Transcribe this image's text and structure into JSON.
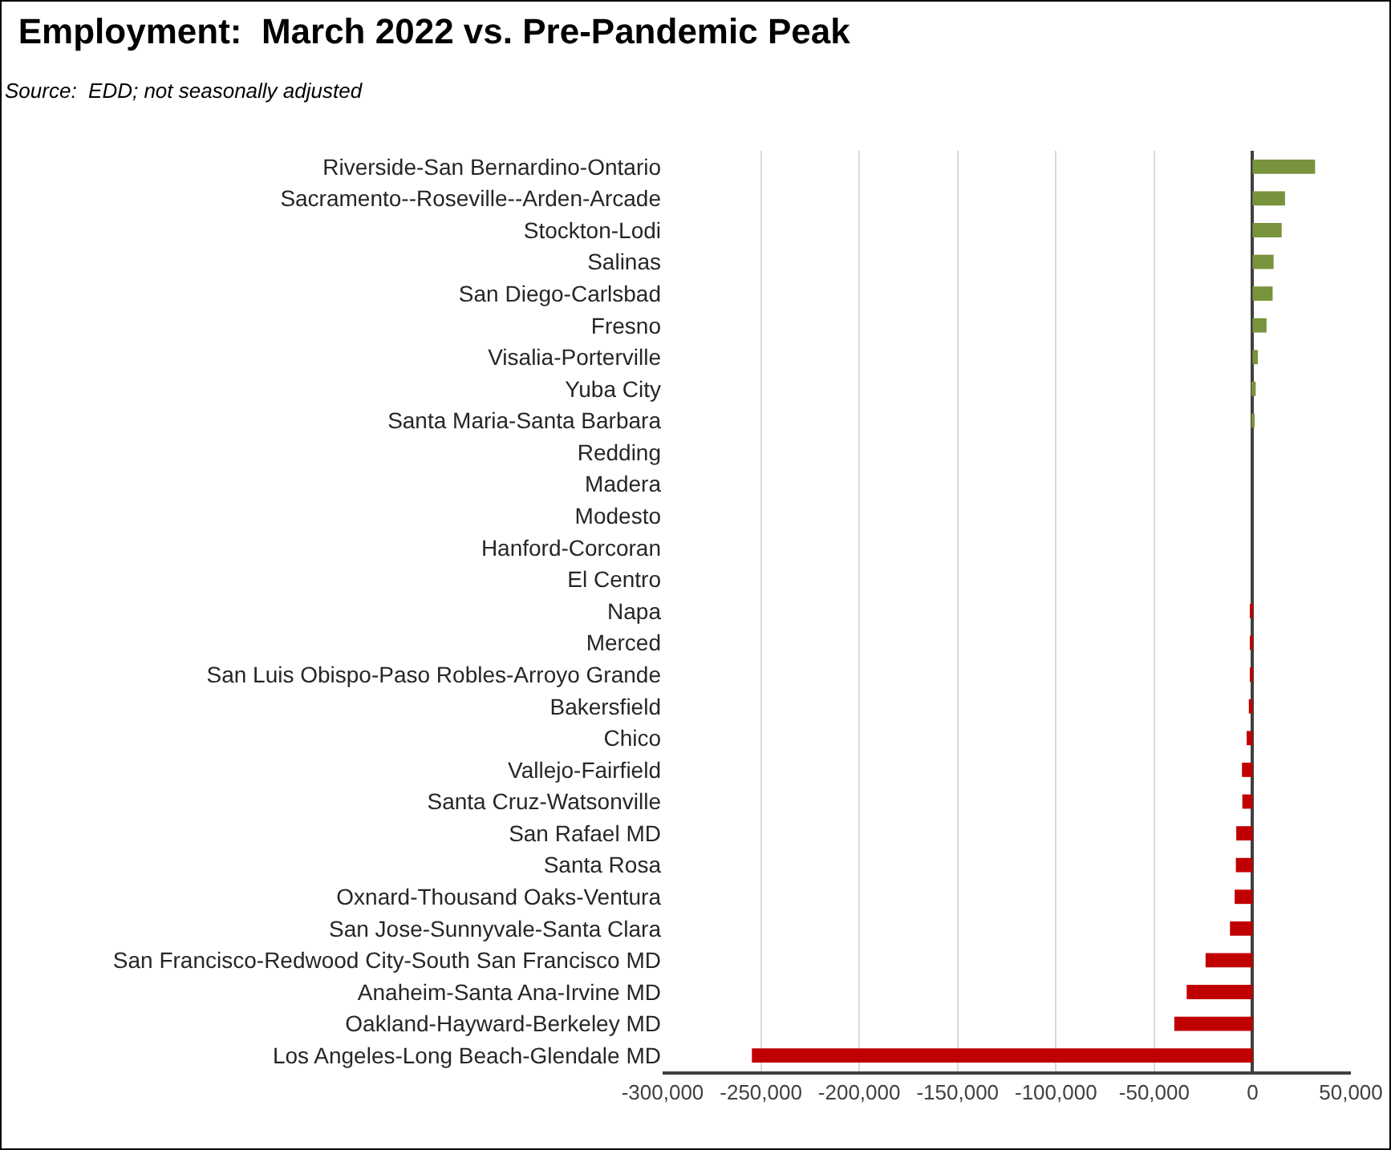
{
  "chart_data": {
    "type": "bar",
    "orientation": "horizontal",
    "title": "Employment:  March 2022 vs. Pre-Pandemic Peak",
    "subtitle": "Source:  EDD; not seasonally adjusted",
    "categories": [
      "Riverside-San Bernardino-Ontario",
      "Sacramento--Roseville--Arden-Arcade",
      "Stockton-Lodi",
      "Salinas",
      "San Diego-Carlsbad",
      "Fresno",
      "Visalia-Porterville",
      "Yuba City",
      "Santa Maria-Santa Barbara",
      "Redding",
      "Madera",
      "Modesto",
      "Hanford-Corcoran",
      "El Centro",
      "Napa",
      "Merced",
      "San Luis Obispo-Paso Robles-Arroyo Grande",
      "Bakersfield",
      "Chico",
      "Vallejo-Fairfield",
      "Santa Cruz-Watsonville",
      "San Rafael MD",
      "Santa Rosa",
      "Oxnard-Thousand Oaks-Ventura",
      "San Jose-Sunnyvale-Santa Clara",
      "San Francisco-Redwood City-South San Francisco MD",
      "Anaheim-Santa Ana-Irvine MD",
      "Oakland-Hayward-Berkeley MD",
      "Los Angeles-Long Beach-Glendale MD"
    ],
    "values": [
      31800,
      16500,
      14800,
      10700,
      10200,
      7100,
      2700,
      1600,
      1000,
      0,
      0,
      0,
      0,
      0,
      -800,
      -1000,
      -1400,
      -1900,
      -3000,
      -5400,
      -5200,
      -8300,
      -8500,
      -9100,
      -11500,
      -23900,
      -33500,
      -39800,
      -254600
    ],
    "colors": [
      "#77933c",
      "#77933c",
      "#77933c",
      "#77933c",
      "#77933c",
      "#77933c",
      "#77933c",
      "#77933c",
      "#77933c",
      "#77933c",
      "#77933c",
      "#77933c",
      "#77933c",
      "#77933c",
      "#c00000",
      "#c00000",
      "#c00000",
      "#c00000",
      "#c00000",
      "#c00000",
      "#c00000",
      "#c00000",
      "#c00000",
      "#c00000",
      "#c00000",
      "#c00000",
      "#c00000",
      "#c00000",
      "#c00000"
    ],
    "xlim": [
      -300000,
      50000
    ],
    "xticks": [
      {
        "value": -300000,
        "label": "-300,000"
      },
      {
        "value": -250000,
        "label": "-250,000"
      },
      {
        "value": -200000,
        "label": "-200,000"
      },
      {
        "value": -150000,
        "label": "-150,000"
      },
      {
        "value": -100000,
        "label": "-100,000"
      },
      {
        "value": -50000,
        "label": "-50,000"
      },
      0,
      {
        "value": 50000,
        "label": "50,000"
      }
    ],
    "grid": "x",
    "legend": false
  }
}
